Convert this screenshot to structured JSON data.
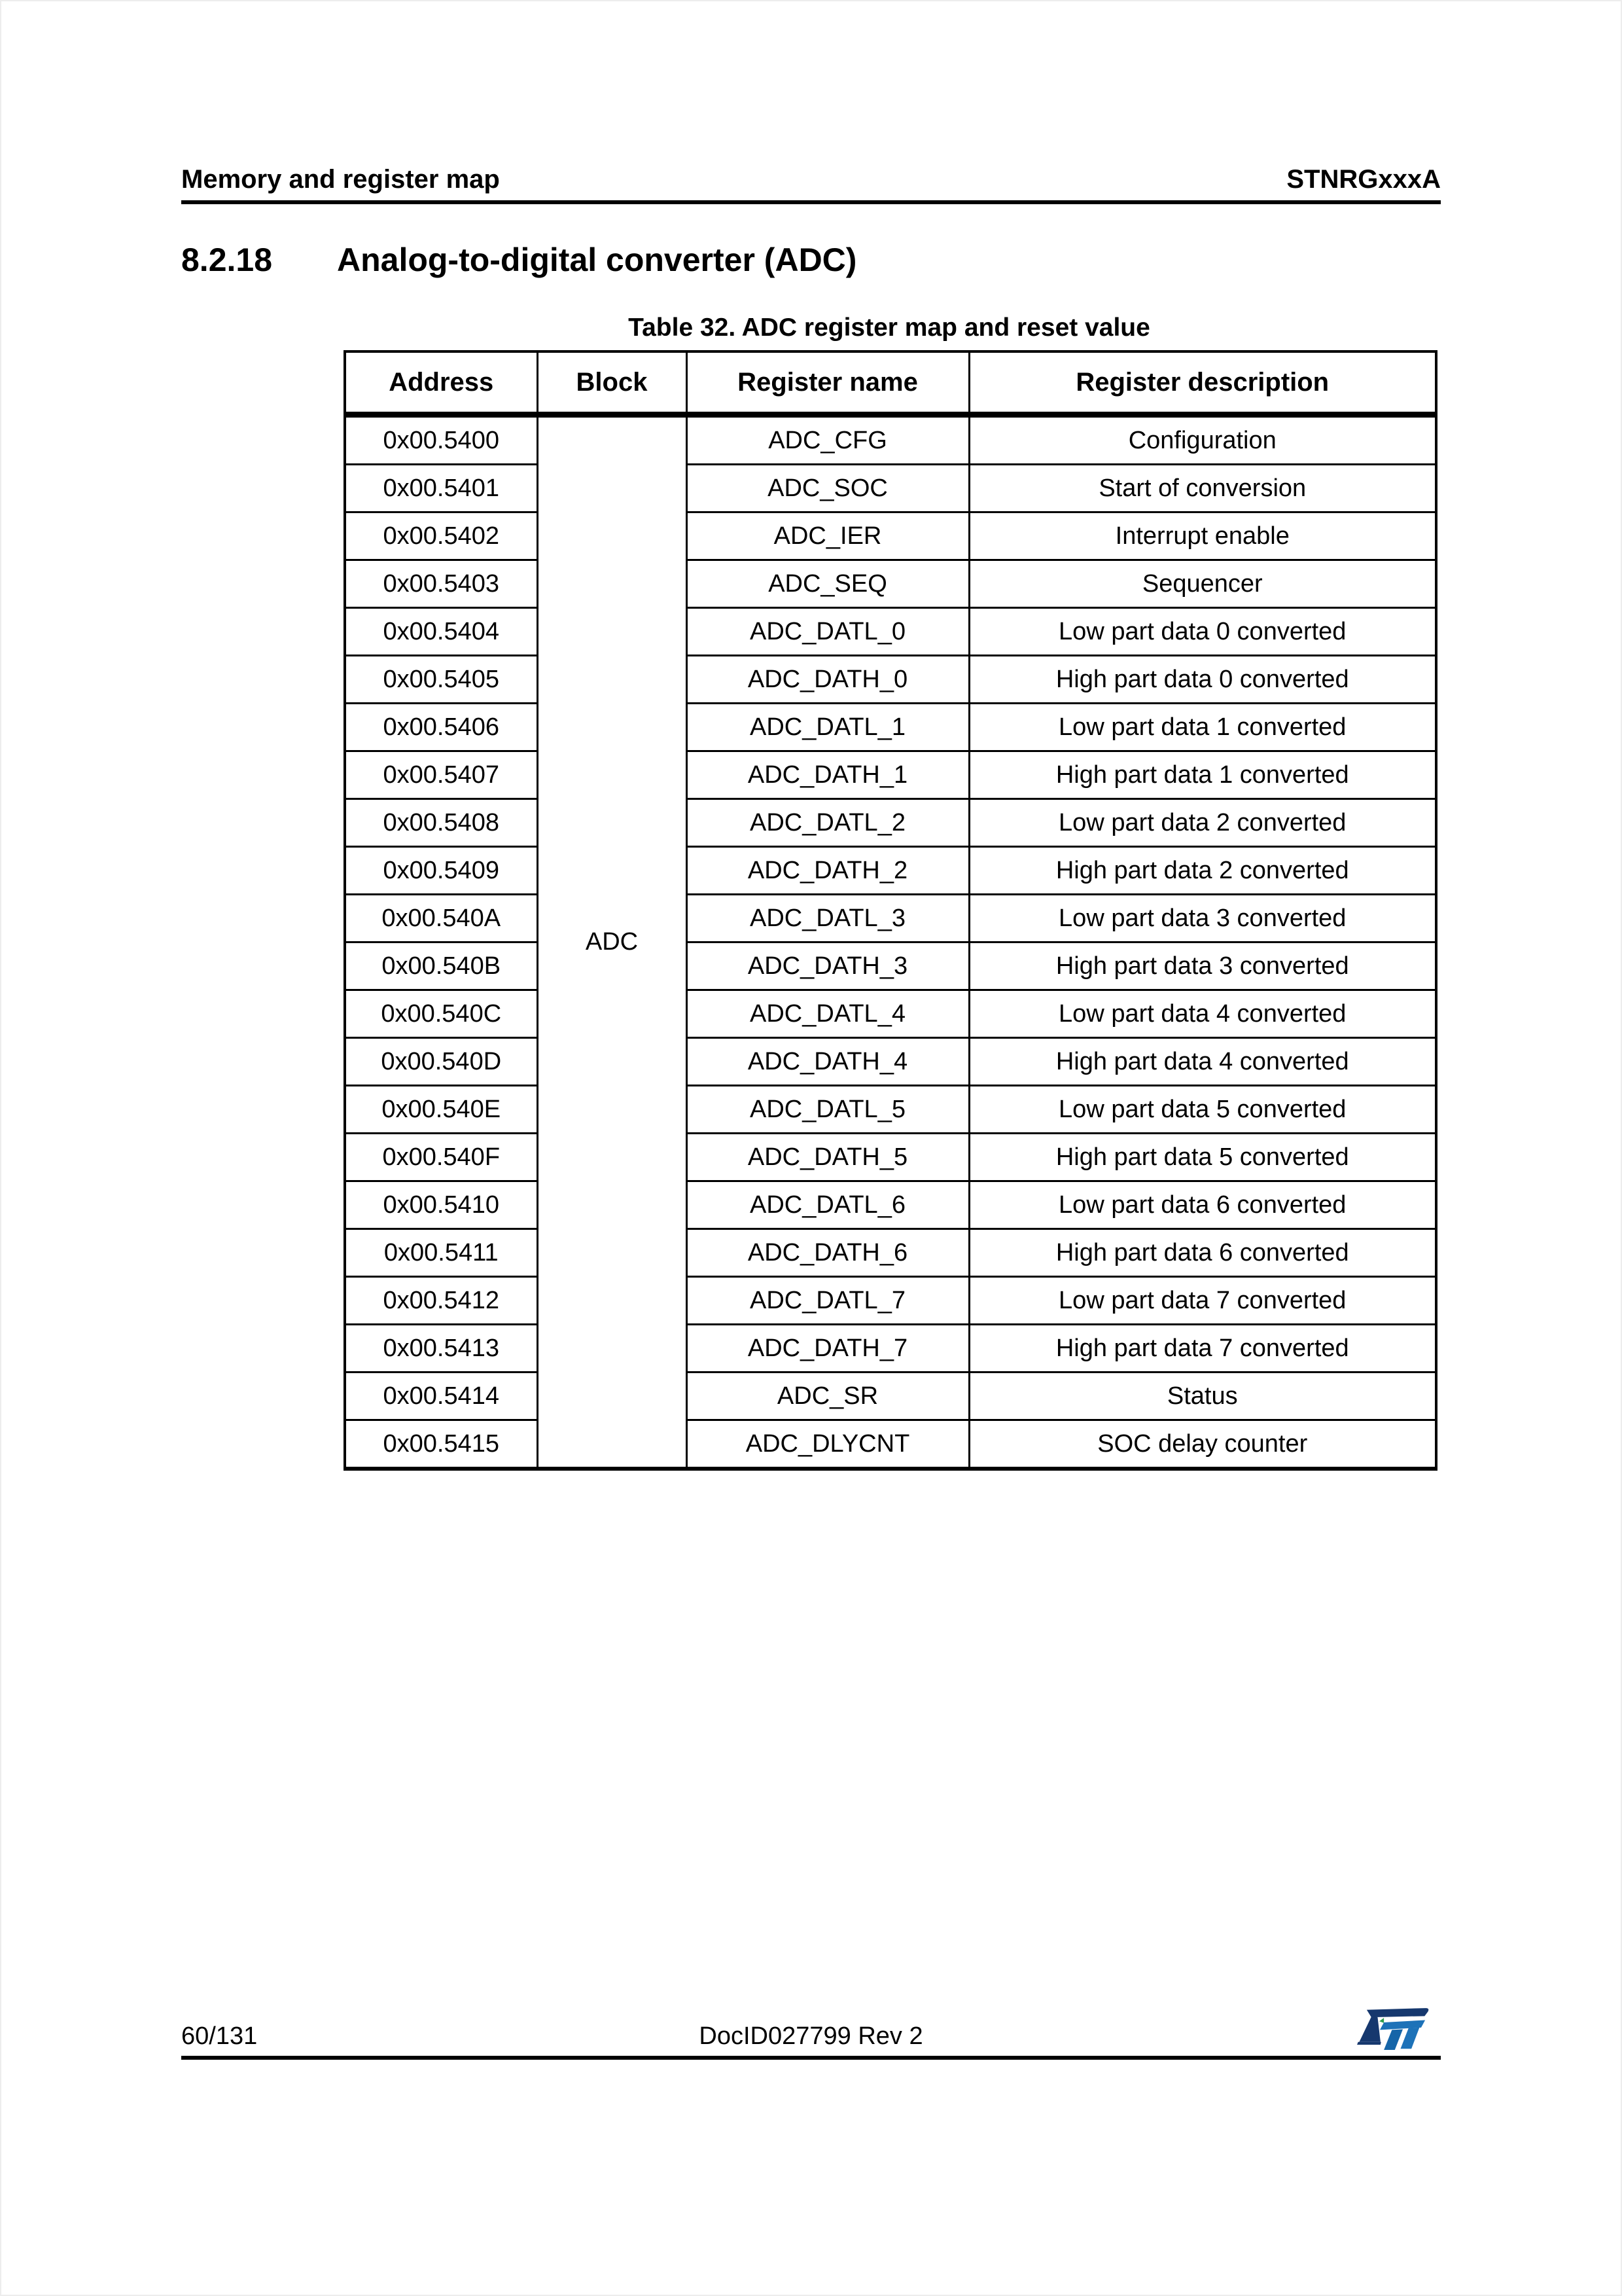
{
  "header": {
    "left": "Memory and register map",
    "right": "STNRGxxxA"
  },
  "section": {
    "number": "8.2.18",
    "title": "Analog-to-digital converter (ADC)"
  },
  "table": {
    "title": "Table 32. ADC register map and reset value",
    "columns": [
      "Address",
      "Block",
      "Register name",
      "Register description"
    ],
    "block_label": "ADC",
    "rows": [
      {
        "address": "0x00.5400",
        "register_name": "ADC_CFG",
        "description": "Configuration"
      },
      {
        "address": "0x00.5401",
        "register_name": "ADC_SOC",
        "description": "Start of conversion"
      },
      {
        "address": "0x00.5402",
        "register_name": "ADC_IER",
        "description": "Interrupt enable"
      },
      {
        "address": "0x00.5403",
        "register_name": "ADC_SEQ",
        "description": "Sequencer"
      },
      {
        "address": "0x00.5404",
        "register_name": "ADC_DATL_0",
        "description": "Low part data 0 converted"
      },
      {
        "address": "0x00.5405",
        "register_name": "ADC_DATH_0",
        "description": "High part data 0 converted"
      },
      {
        "address": "0x00.5406",
        "register_name": "ADC_DATL_1",
        "description": "Low part data 1 converted"
      },
      {
        "address": "0x00.5407",
        "register_name": "ADC_DATH_1",
        "description": "High part data 1 converted"
      },
      {
        "address": "0x00.5408",
        "register_name": "ADC_DATL_2",
        "description": "Low part data 2 converted"
      },
      {
        "address": "0x00.5409",
        "register_name": "ADC_DATH_2",
        "description": "High part data 2 converted"
      },
      {
        "address": "0x00.540A",
        "register_name": "ADC_DATL_3",
        "description": "Low part data 3 converted"
      },
      {
        "address": "0x00.540B",
        "register_name": "ADC_DATH_3",
        "description": "High part data 3 converted"
      },
      {
        "address": "0x00.540C",
        "register_name": "ADC_DATL_4",
        "description": "Low part data 4 converted"
      },
      {
        "address": "0x00.540D",
        "register_name": "ADC_DATH_4",
        "description": "High part data 4 converted"
      },
      {
        "address": "0x00.540E",
        "register_name": "ADC_DATL_5",
        "description": "Low part data 5 converted"
      },
      {
        "address": "0x00.540F",
        "register_name": "ADC_DATH_5",
        "description": "High part data 5 converted"
      },
      {
        "address": "0x00.5410",
        "register_name": "ADC_DATL_6",
        "description": "Low part data 6 converted"
      },
      {
        "address": "0x00.5411",
        "register_name": "ADC_DATH_6",
        "description": "High part data 6 converted"
      },
      {
        "address": "0x00.5412",
        "register_name": "ADC_DATL_7",
        "description": "Low part data 7 converted"
      },
      {
        "address": "0x00.5413",
        "register_name": "ADC_DATH_7",
        "description": "High part data 7 converted"
      },
      {
        "address": "0x00.5414",
        "register_name": "ADC_SR",
        "description": "Status"
      },
      {
        "address": "0x00.5415",
        "register_name": "ADC_DLYCNT",
        "description": "SOC delay counter"
      }
    ]
  },
  "footer": {
    "page_number": "60/131",
    "doc_id": "DocID027799 Rev 2",
    "logo": "st-logo"
  },
  "colors": {
    "text": "#000000",
    "rule": "#000000",
    "logo_navy": "#16386e",
    "logo_blue": "#1d72b8",
    "logo_blue_dark": "#1565a8",
    "logo_green": "#2e9e4f"
  }
}
